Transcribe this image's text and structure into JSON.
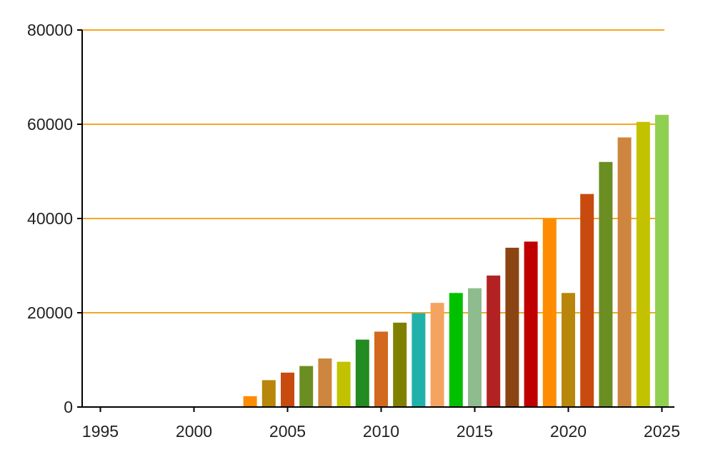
{
  "chart_data": {
    "type": "bar",
    "title": "",
    "xlabel": "",
    "ylabel": "",
    "ylim": [
      0,
      80000
    ],
    "xlim": [
      1994,
      2025.5
    ],
    "y_ticks": [
      "0",
      "20000",
      "40000",
      "60000",
      "80000"
    ],
    "x_ticks": [
      "1995",
      "2000",
      "2005",
      "2010",
      "2015",
      "2020",
      "2025"
    ],
    "grid": "horizontal",
    "legend": "none",
    "grid_color": "#f5a623",
    "axis_color": "#000000",
    "categories": [
      "2003",
      "2004",
      "2005",
      "2006",
      "2007",
      "2008",
      "2009",
      "2010",
      "2011",
      "2012",
      "2013",
      "2014",
      "2015",
      "2016",
      "2017",
      "2018",
      "2019",
      "2020",
      "2021",
      "2022",
      "2023",
      "2024",
      "2025"
    ],
    "values": [
      2300,
      5700,
      7300,
      8700,
      10300,
      9600,
      14300,
      16000,
      17900,
      19900,
      22100,
      24200,
      25200,
      27900,
      33800,
      35100,
      40000,
      24200,
      45200,
      52000,
      57200,
      60500,
      62000
    ],
    "colors": [
      "#ff8c00",
      "#b8860b",
      "#c84a0e",
      "#6b8e23",
      "#cd853f",
      "#c2c200",
      "#228b22",
      "#d2691e",
      "#808000",
      "#20b2aa",
      "#f4a460",
      "#00c000",
      "#8fbc8f",
      "#b22222",
      "#8b4513",
      "#c00000",
      "#ff8c00",
      "#b8860b",
      "#c84a0e",
      "#6b8e23",
      "#cd853f",
      "#c2c200",
      "#90d050"
    ]
  }
}
